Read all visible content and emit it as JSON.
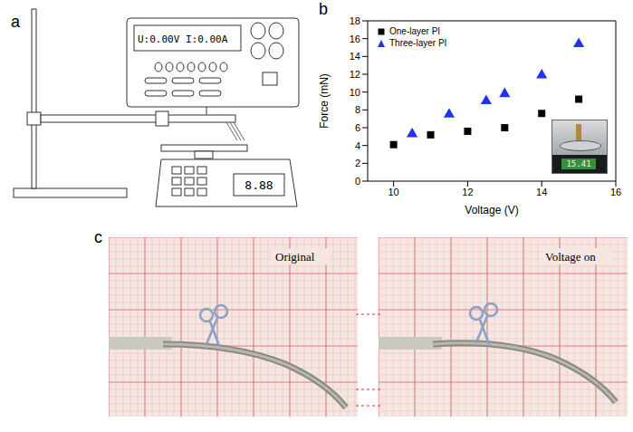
{
  "figure": {
    "panels": [
      {
        "letter": "a",
        "meter_display": "U:0.00V I:0.00A",
        "scale_display": "8.88"
      },
      {
        "letter": "b",
        "inset_display": "15.41"
      },
      {
        "letter": "c",
        "photos": [
          "Original",
          "Voltage on"
        ]
      }
    ]
  },
  "chart_data": {
    "type": "scatter",
    "x_label": "Voltage (V)",
    "y_label": "Force (mN)",
    "xlim": [
      9.3,
      16
    ],
    "xticks": [
      10,
      12,
      14,
      16
    ],
    "ylim": [
      0,
      18
    ],
    "yticks": [
      0,
      2,
      4,
      6,
      8,
      10,
      12,
      14,
      16,
      18
    ],
    "grid": false,
    "legend": "upper left",
    "series": [
      {
        "name": "One-layer PI",
        "color": "#000000",
        "marker": "square",
        "x": [
          10,
          11,
          12,
          13,
          14,
          15
        ],
        "values": [
          4.1,
          5.2,
          5.6,
          6.0,
          7.6,
          9.2
        ]
      },
      {
        "name": "Three-layer PI",
        "color": "#2233ee",
        "marker": "triangle",
        "x": [
          10.5,
          11.5,
          12.5,
          13,
          14,
          15
        ],
        "values": [
          5.3,
          7.5,
          9.0,
          9.8,
          11.9,
          15.4
        ]
      }
    ]
  }
}
